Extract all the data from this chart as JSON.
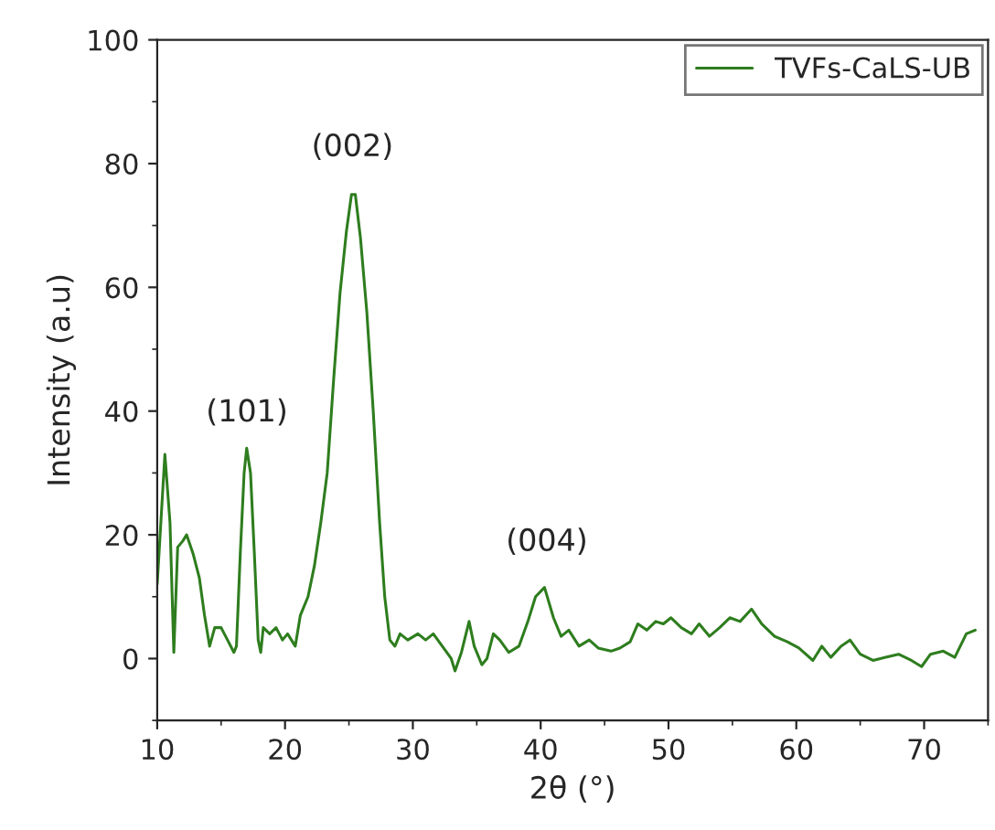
{
  "chart_data": {
    "type": "line",
    "xlabel": "2θ (°)",
    "ylabel": "Intensity (a.u)",
    "xlim": [
      10,
      75
    ],
    "ylim": [
      -10,
      100
    ],
    "xticks": [
      10,
      20,
      30,
      40,
      50,
      60,
      70
    ],
    "yticks": [
      0,
      20,
      40,
      60,
      80,
      100
    ],
    "grid": false,
    "legend": "top right",
    "marker": "none",
    "line_style": "solid",
    "annotations": [
      "(101)",
      "(002)",
      "(004)"
    ],
    "series": [
      {
        "name": "TVFs-CaLS-UB",
        "color": "#2e7d1e",
        "x": [
          10.0,
          10.6,
          11.0,
          11.3,
          11.6,
          12.0,
          12.3,
          12.8,
          13.3,
          13.7,
          14.1,
          14.5,
          15.0,
          15.5,
          16.0,
          16.2,
          16.5,
          16.8,
          17.0,
          17.3,
          17.6,
          17.9,
          18.1,
          18.3,
          18.8,
          19.3,
          19.8,
          20.2,
          20.8,
          21.2,
          21.8,
          22.3,
          22.8,
          23.3,
          23.8,
          24.3,
          24.8,
          25.2,
          25.5,
          25.9,
          26.4,
          26.9,
          27.4,
          27.8,
          28.2,
          28.6,
          29.0,
          29.6,
          30.4,
          31.0,
          31.6,
          32.3,
          33.0,
          33.3,
          33.8,
          34.4,
          34.8,
          35.4,
          35.8,
          36.3,
          36.8,
          37.5,
          38.3,
          39.0,
          39.6,
          40.3,
          41.0,
          41.6,
          42.2,
          43.0,
          43.8,
          44.5,
          45.5,
          46.2,
          47.0,
          47.6,
          48.3,
          49.0,
          49.6,
          50.2,
          51.0,
          51.8,
          52.4,
          53.2,
          54.0,
          54.8,
          55.6,
          56.5,
          57.3,
          58.3,
          59.3,
          60.2,
          61.3,
          62.0,
          62.7,
          63.5,
          64.2,
          65.0,
          66.0,
          67.0,
          68.0,
          69.0,
          69.8,
          70.5,
          71.5,
          72.4,
          73.3,
          74.0
        ],
        "values": [
          12,
          33,
          22,
          1,
          18,
          19,
          20,
          17,
          13,
          7,
          2,
          5,
          5,
          3,
          1,
          2,
          17,
          30,
          34,
          30,
          17,
          3,
          1,
          5,
          4,
          5,
          3,
          4,
          2,
          7,
          10,
          15,
          22,
          30,
          45,
          59,
          69,
          75,
          75,
          68,
          56,
          40,
          22,
          10,
          3,
          2,
          4,
          3,
          4,
          3,
          4,
          2,
          0,
          -2,
          1,
          6,
          2,
          -1,
          0,
          4,
          3,
          1,
          2,
          6,
          10,
          11.5,
          6.6,
          3.6,
          4.6,
          2,
          3,
          1.7,
          1.2,
          1.7,
          2.7,
          5.6,
          4.6,
          6,
          5.6,
          6.6,
          5,
          4,
          5.6,
          3.6,
          5,
          6.6,
          6,
          8,
          5.6,
          3.6,
          2.7,
          1.7,
          -0.3,
          2,
          0.2,
          2,
          3,
          0.7,
          -0.3,
          0.2,
          0.7,
          -0.3,
          -1.3,
          0.7,
          1.2,
          0.2,
          4,
          4.6
        ]
      }
    ]
  }
}
